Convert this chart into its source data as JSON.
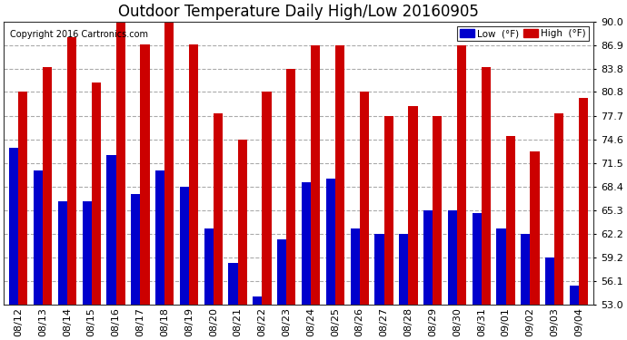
{
  "title": "Outdoor Temperature Daily High/Low 20160905",
  "copyright": "Copyright 2016 Cartronics.com",
  "legend_low": "Low  (°F)",
  "legend_high": "High  (°F)",
  "dates": [
    "08/12",
    "08/13",
    "08/14",
    "08/15",
    "08/16",
    "08/17",
    "08/18",
    "08/19",
    "08/20",
    "08/21",
    "08/22",
    "08/23",
    "08/24",
    "08/25",
    "08/26",
    "08/27",
    "08/28",
    "08/29",
    "08/30",
    "08/31",
    "09/01",
    "09/02",
    "09/03",
    "09/04"
  ],
  "highs": [
    80.8,
    84.0,
    88.0,
    82.0,
    91.0,
    87.0,
    91.0,
    87.0,
    78.0,
    74.6,
    80.8,
    83.8,
    86.9,
    86.9,
    80.8,
    77.7,
    79.0,
    77.7,
    86.9,
    84.0,
    75.0,
    73.0,
    78.0,
    80.0
  ],
  "lows": [
    73.5,
    70.5,
    66.5,
    66.5,
    72.5,
    67.5,
    70.5,
    68.4,
    63.0,
    58.5,
    54.0,
    61.5,
    69.0,
    69.5,
    63.0,
    62.2,
    62.2,
    65.3,
    65.3,
    65.0,
    63.0,
    62.2,
    59.2,
    55.5
  ],
  "ymin": 53.0,
  "ymax": 90.0,
  "yticks": [
    53.0,
    56.1,
    59.2,
    62.2,
    65.3,
    68.4,
    71.5,
    74.6,
    77.7,
    80.8,
    83.8,
    86.9,
    90.0
  ],
  "bar_width": 0.38,
  "low_color": "#0000cc",
  "high_color": "#cc0000",
  "bg_color": "#ffffff",
  "grid_color": "#aaaaaa",
  "title_fontsize": 12,
  "tick_fontsize": 8,
  "copyright_fontsize": 7,
  "figsize": [
    6.9,
    3.75
  ],
  "dpi": 100
}
